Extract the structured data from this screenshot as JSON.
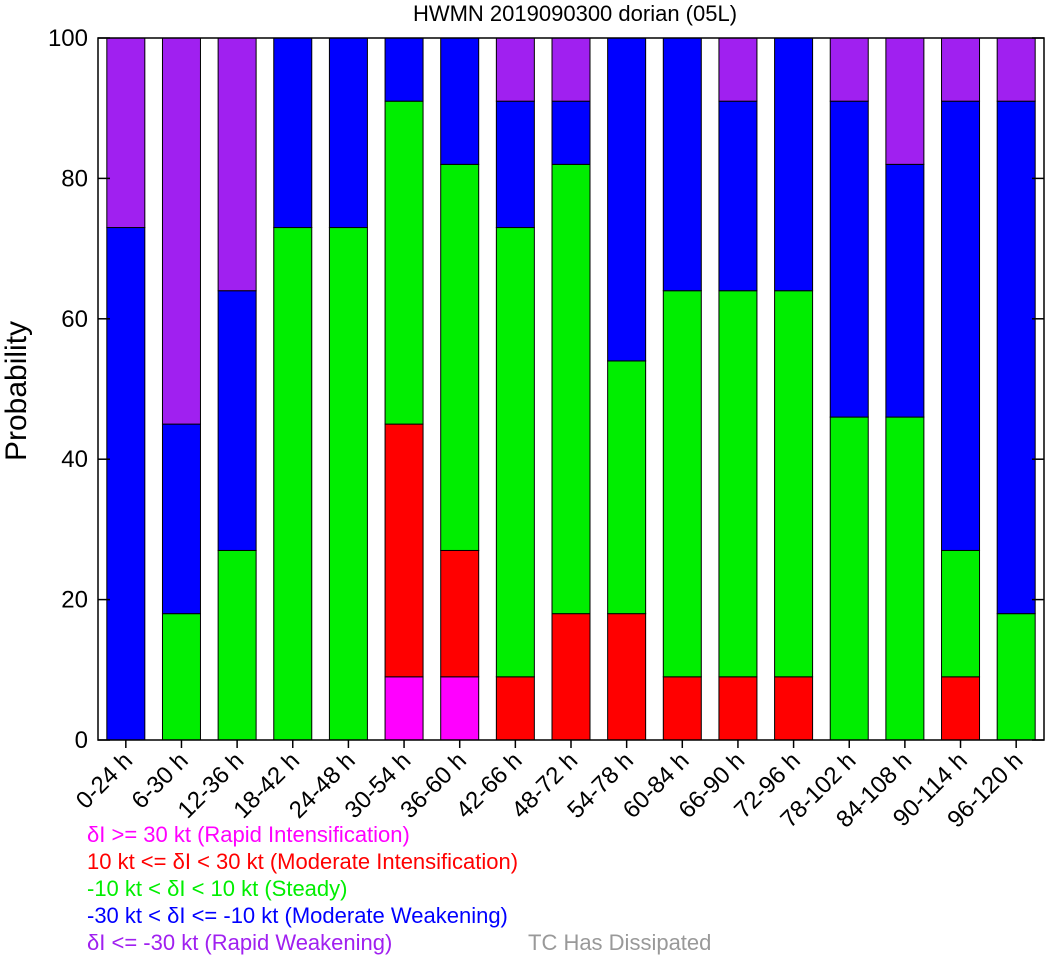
{
  "chart_data": {
    "type": "bar",
    "stacked": true,
    "title": "HWMN 2019090300 dorian (05L)",
    "xlabel": "",
    "ylabel": "Probability",
    "ylim": [
      0,
      100
    ],
    "yticks": [
      0,
      20,
      40,
      60,
      80,
      100
    ],
    "grid": false,
    "categories": [
      "0-24 h",
      "6-30 h",
      "12-36 h",
      "18-42 h",
      "24-48 h",
      "30-54 h",
      "36-60 h",
      "42-66 h",
      "48-72 h",
      "54-78 h",
      "60-84 h",
      "66-90 h",
      "72-96 h",
      "78-102 h",
      "84-108 h",
      "90-114 h",
      "96-120 h"
    ],
    "series": [
      {
        "name": "δI >= 30 kt (Rapid Intensification)",
        "color": "#ff00ff",
        "values": [
          0,
          0,
          0,
          0,
          0,
          9,
          9,
          0,
          0,
          0,
          0,
          0,
          0,
          0,
          0,
          0,
          0
        ]
      },
      {
        "name": "10 kt <= δI < 30 kt (Moderate Intensification)",
        "color": "#ff0000",
        "values": [
          0,
          0,
          0,
          0,
          0,
          36,
          18,
          9,
          18,
          18,
          9,
          9,
          9,
          0,
          0,
          9,
          0
        ]
      },
      {
        "name": "-10 kt < δI < 10 kt (Steady)",
        "color": "#00ee00",
        "values": [
          0,
          18,
          27,
          73,
          73,
          46,
          55,
          64,
          64,
          36,
          55,
          55,
          55,
          46,
          46,
          18,
          18
        ]
      },
      {
        "name": "-30 kt < δI <= -10 kt (Moderate Weakening)",
        "color": "#0000ff",
        "values": [
          73,
          27,
          37,
          27,
          27,
          9,
          18,
          18,
          9,
          46,
          36,
          27,
          36,
          45,
          36,
          64,
          73
        ]
      },
      {
        "name": "δI <= -30 kt (Rapid Weakening)",
        "color": "#a020f0",
        "values": [
          27,
          55,
          36,
          0,
          0,
          0,
          0,
          9,
          9,
          0,
          0,
          9,
          0,
          9,
          18,
          9,
          9
        ]
      }
    ],
    "legend": [
      {
        "text": "δI >= 30 kt (Rapid Intensification)",
        "color": "#ff00ff"
      },
      {
        "text": "10 kt <= δI < 30 kt (Moderate Intensification)",
        "color": "#ff0000"
      },
      {
        "text": "-10 kt < δI < 10 kt (Steady)",
        "color": "#00ee00"
      },
      {
        "text": "-30 kt < δI <= -10 kt (Moderate Weakening)",
        "color": "#0000ff"
      },
      {
        "text": "δI <= -30 kt (Rapid Weakening)",
        "color": "#a020f0"
      }
    ],
    "legend_placement": "bottom-left",
    "dissipated_label": "TC Has Dissipated",
    "dissipated_color": "#999999"
  }
}
